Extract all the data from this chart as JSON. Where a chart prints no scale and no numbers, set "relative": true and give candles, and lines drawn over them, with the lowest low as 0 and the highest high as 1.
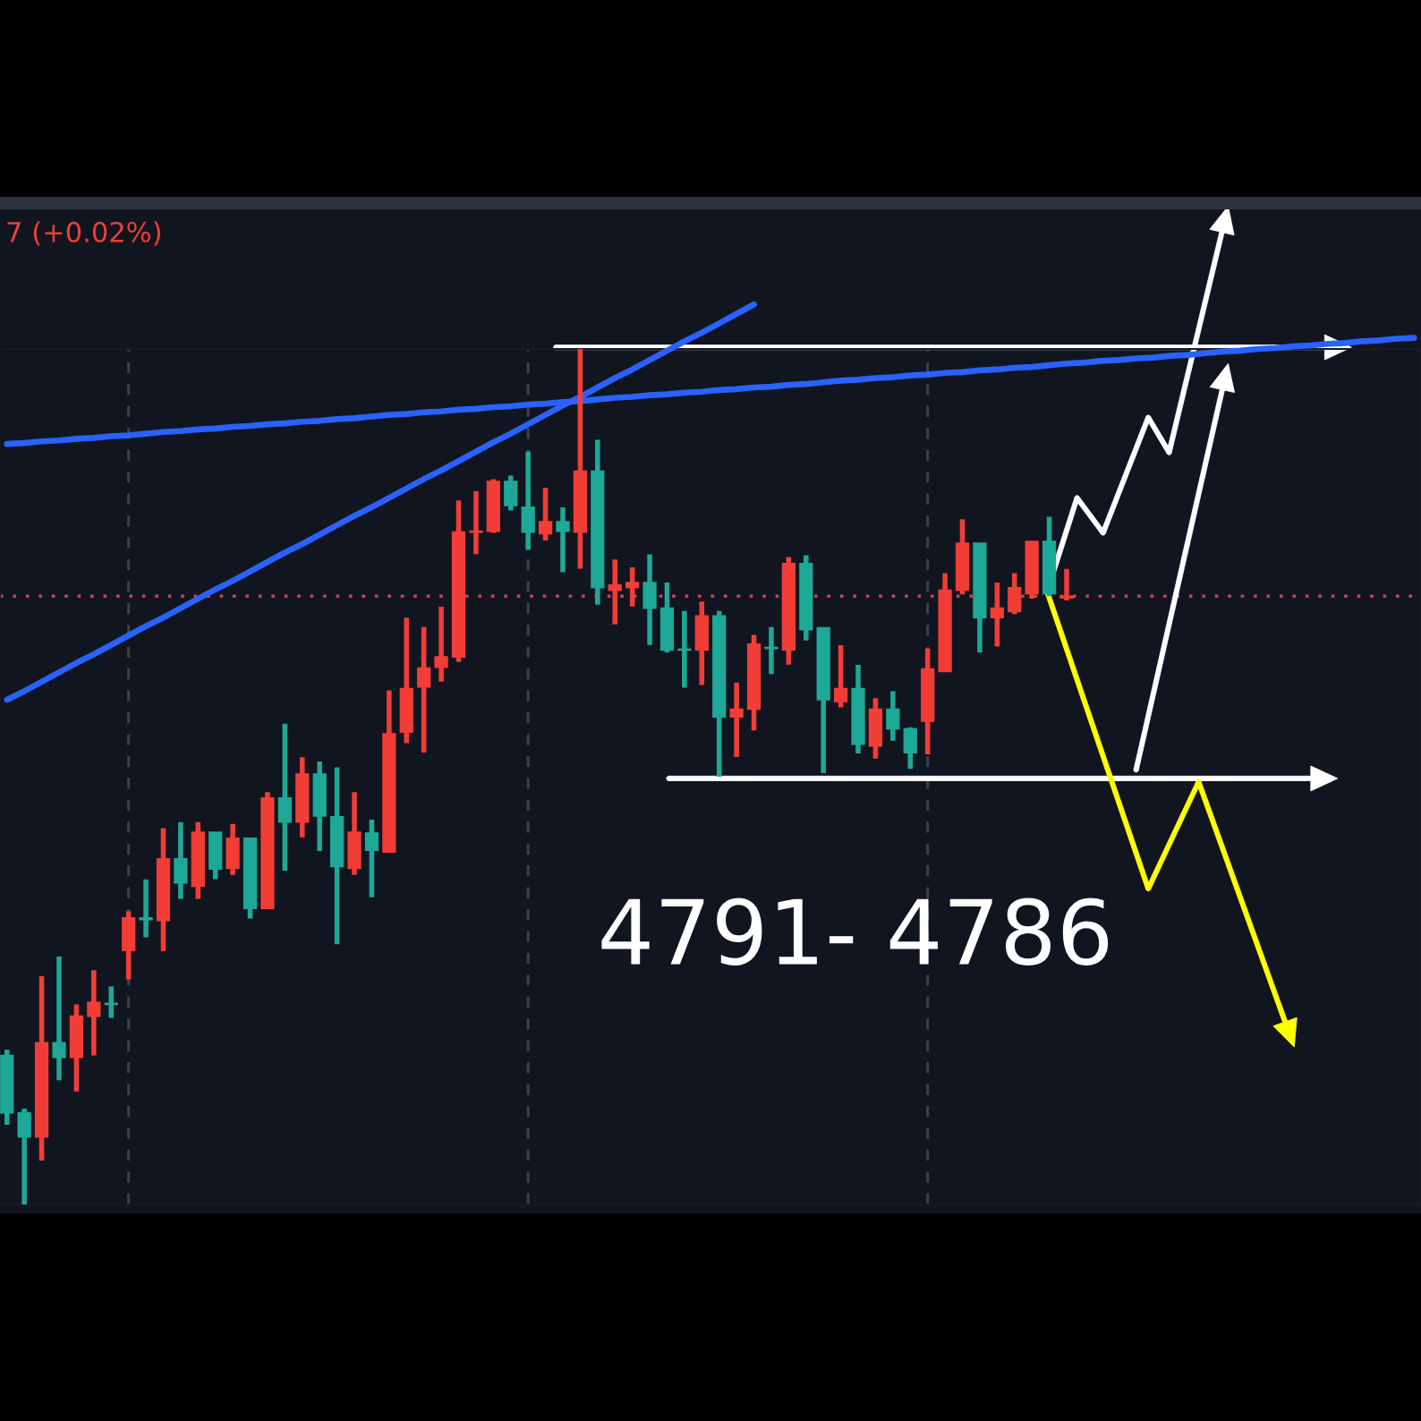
{
  "chart_data": {
    "type": "candlestick",
    "relative": true,
    "grid": "x",
    "categories": [
      null,
      null,
      null,
      null,
      null,
      null,
      null,
      null,
      null,
      null,
      null,
      null,
      null,
      null,
      null,
      null,
      null,
      null,
      null,
      null,
      null,
      null,
      null,
      null,
      null,
      null,
      null,
      null,
      null,
      null,
      null,
      null,
      null,
      null,
      null,
      null,
      null,
      null,
      null,
      null,
      null,
      null,
      null,
      null,
      null,
      null,
      null,
      null,
      null,
      null,
      null,
      null,
      null,
      null,
      null,
      null,
      null,
      null,
      null,
      null,
      null,
      null,
      null,
      null,
      null,
      null,
      null,
      null,
      null,
      null,
      null,
      null,
      null,
      null,
      null,
      null,
      null,
      null,
      null,
      null,
      null,
      null
    ],
    "ohlc": [
      [
        0.174,
        0.18,
        0.094,
        0.107
      ],
      [
        0.107,
        0.111,
        0.0,
        0.079
      ],
      [
        0.079,
        0.266,
        0.052,
        0.189
      ],
      [
        0.189,
        0.289,
        0.146,
        0.172
      ],
      [
        0.172,
        0.233,
        0.133,
        0.22
      ],
      [
        0.22,
        0.273,
        0.175,
        0.236
      ],
      [
        0.235,
        0.254,
        0.219,
        0.234
      ],
      [
        0.297,
        0.342,
        0.264,
        0.335
      ],
      [
        0.335,
        0.379,
        0.313,
        0.333
      ],
      [
        0.332,
        0.439,
        0.297,
        0.404
      ],
      [
        0.404,
        0.446,
        0.358,
        0.376
      ],
      [
        0.372,
        0.446,
        0.358,
        0.435
      ],
      [
        0.435,
        0.435,
        0.381,
        0.392
      ],
      [
        0.393,
        0.444,
        0.386,
        0.428
      ],
      [
        0.428,
        0.428,
        0.335,
        0.346
      ],
      [
        0.346,
        0.481,
        0.346,
        0.475
      ],
      [
        0.475,
        0.561,
        0.391,
        0.447
      ],
      [
        0.447,
        0.522,
        0.43,
        0.503
      ],
      [
        0.503,
        0.517,
        0.414,
        0.454
      ],
      [
        0.453,
        0.51,
        0.305,
        0.395
      ],
      [
        0.393,
        0.481,
        0.386,
        0.435
      ],
      [
        0.434,
        0.449,
        0.36,
        0.414
      ],
      [
        0.412,
        0.6,
        0.412,
        0.55
      ],
      [
        0.552,
        0.685,
        0.54,
        0.603
      ],
      [
        0.605,
        0.674,
        0.529,
        0.627
      ],
      [
        0.628,
        0.698,
        0.612,
        0.64
      ],
      [
        0.64,
        0.822,
        0.635,
        0.786
      ],
      [
        0.786,
        0.833,
        0.761,
        0.787
      ],
      [
        0.787,
        0.847,
        0.786,
        0.845
      ],
      [
        0.845,
        0.851,
        0.812,
        0.817
      ],
      [
        0.815,
        0.879,
        0.766,
        0.786
      ],
      [
        0.784,
        0.837,
        0.777,
        0.798
      ],
      [
        0.798,
        0.814,
        0.74,
        0.787
      ],
      [
        0.786,
        1.0,
        0.744,
        0.857
      ],
      [
        0.857,
        0.893,
        0.702,
        0.721
      ],
      [
        0.718,
        0.753,
        0.679,
        0.724
      ],
      [
        0.721,
        0.744,
        0.7,
        0.727
      ],
      [
        0.727,
        0.759,
        0.655,
        0.697
      ],
      [
        0.697,
        0.726,
        0.646,
        0.648
      ],
      [
        0.649,
        0.693,
        0.605,
        0.648
      ],
      [
        0.648,
        0.704,
        0.608,
        0.688
      ],
      [
        0.688,
        0.693,
        0.501,
        0.57
      ],
      [
        0.57,
        0.609,
        0.524,
        0.579
      ],
      [
        0.579,
        0.665,
        0.555,
        0.655
      ],
      [
        0.651,
        0.674,
        0.621,
        0.65
      ],
      [
        0.648,
        0.756,
        0.632,
        0.749
      ],
      [
        0.749,
        0.758,
        0.66,
        0.672
      ],
      [
        0.674,
        0.674,
        0.505,
        0.59
      ],
      [
        0.588,
        0.653,
        0.582,
        0.603
      ],
      [
        0.603,
        0.63,
        0.528,
        0.538
      ],
      [
        0.536,
        0.591,
        0.522,
        0.579
      ],
      [
        0.579,
        0.599,
        0.543,
        0.556
      ],
      [
        0.556,
        0.557,
        0.51,
        0.528
      ],
      [
        0.565,
        0.649,
        0.527,
        0.626
      ],
      [
        0.623,
        0.737,
        0.623,
        0.718
      ],
      [
        0.718,
        0.8,
        0.714,
        0.773
      ],
      [
        0.773,
        0.773,
        0.646,
        0.686
      ],
      [
        0.686,
        0.726,
        0.653,
        0.697
      ],
      [
        0.693,
        0.737,
        0.691,
        0.721
      ],
      [
        0.714,
        0.775,
        0.709,
        0.775
      ],
      [
        0.775,
        0.803,
        0.712,
        0.714
      ],
      [
        0.709,
        0.742,
        0.707,
        0.711
      ],
      null,
      null,
      null,
      null,
      null,
      null,
      null,
      null,
      null,
      null,
      null,
      null,
      null,
      null,
      null,
      null,
      null,
      null,
      null,
      null
    ],
    "colors": [
      "#1ea897",
      "#1ea897",
      "#f23d36",
      "#1ea897",
      "#f23d36",
      "#f23d36",
      "#1ea897",
      "#f23d36",
      "#1ea897",
      "#f23d36",
      "#1ea897",
      "#f23d36",
      "#1ea897",
      "#f23d36",
      "#1ea897",
      "#f23d36",
      "#1ea897",
      "#f23d36",
      "#1ea897",
      "#1ea897",
      "#f23d36",
      "#1ea897",
      "#f23d36",
      "#f23d36",
      "#f23d36",
      "#f23d36",
      "#f23d36",
      "#f23d36",
      "#f23d36",
      "#1ea897",
      "#1ea897",
      "#f23d36",
      "#1ea897",
      "#f23d36",
      "#1ea897",
      "#f23d36",
      "#f23d36",
      "#1ea897",
      "#1ea897",
      "#1ea897",
      "#f23d36",
      "#1ea897",
      "#f23d36",
      "#f23d36",
      "#1ea897",
      "#f23d36",
      "#1ea897",
      "#1ea897",
      "#f23d36",
      "#1ea897",
      "#f23d36",
      "#1ea897",
      "#1ea897",
      "#f23d36",
      "#f23d36",
      "#f23d36",
      "#1ea897",
      "#f23d36",
      "#f23d36",
      "#f23d36",
      "#1ea897",
      "#f23d36",
      null,
      null,
      null,
      null,
      null,
      null,
      null,
      null,
      null,
      null,
      null,
      null,
      null,
      null,
      null,
      null,
      null,
      null,
      null,
      null
    ],
    "series": [
      {
        "type": "line",
        "color": "#2962ff",
        "values": [
          0.889,
          0.89,
          0.892,
          0.893,
          0.895,
          0.896,
          0.898,
          0.899,
          0.901,
          0.903,
          0.904,
          0.906,
          0.907,
          0.909,
          0.91,
          0.912,
          0.913,
          0.915,
          0.916,
          0.918,
          0.919,
          0.921,
          0.923,
          0.924,
          0.926,
          0.927,
          0.929,
          0.93,
          0.932,
          0.933,
          0.935,
          0.936,
          0.938,
          0.939,
          0.941,
          0.943,
          0.944,
          0.946,
          0.947,
          0.949,
          0.95,
          0.952,
          0.953,
          0.955,
          0.956,
          0.958,
          0.959,
          0.961,
          0.963,
          0.964,
          0.966,
          0.967,
          0.969,
          0.97,
          0.972,
          0.973,
          0.975,
          0.976,
          0.978,
          0.979,
          0.981,
          0.983,
          0.984,
          0.986,
          0.987,
          0.989,
          0.99,
          0.992,
          0.993,
          0.995,
          0.997,
          0.998,
          1.0,
          1.001,
          1.003,
          1.004,
          1.006,
          1.007,
          1.009,
          1.01,
          1.012,
          1.013
        ]
      },
      {
        "type": "line",
        "color": "#2962ff",
        "values": [
          0.59,
          0.6,
          0.611,
          0.622,
          0.633,
          0.643,
          0.654,
          0.665,
          0.676,
          0.686,
          0.697,
          0.708,
          0.719,
          0.729,
          0.74,
          0.751,
          0.762,
          0.772,
          0.783,
          0.794,
          0.805,
          0.815,
          0.826,
          0.837,
          0.848,
          0.858,
          0.869,
          0.88,
          0.891,
          0.901,
          0.912,
          0.923,
          0.934,
          0.944,
          0.955,
          0.966,
          0.976,
          0.987,
          0.998,
          1.009,
          1.019,
          1.03,
          1.041,
          1.052,
          null,
          null,
          null,
          null,
          null,
          null,
          null,
          null,
          null,
          null,
          null,
          null,
          null,
          null,
          null,
          null,
          null,
          null,
          null,
          null,
          null,
          null,
          null,
          null,
          null,
          null,
          null,
          null,
          null,
          null,
          null,
          null,
          null,
          null,
          null,
          null,
          null,
          null
        ]
      }
    ],
    "ref_lines": [
      {
        "axis": "y",
        "value": 0.711,
        "color": "#c8454c",
        "line_style": "dotted"
      }
    ],
    "annotations": [
      "7 (+0.02%)",
      "4791- 4786"
    ]
  }
}
